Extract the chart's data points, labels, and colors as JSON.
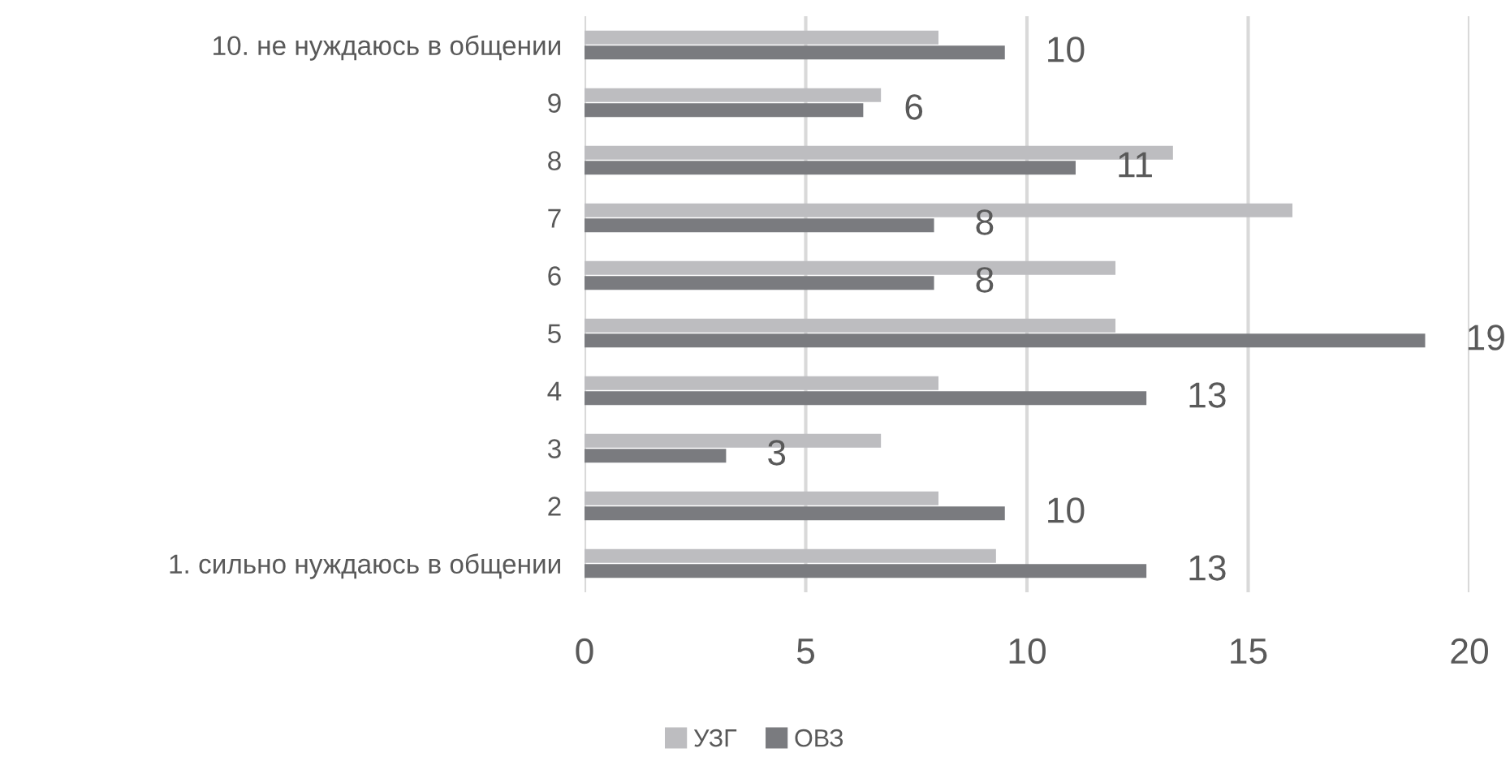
{
  "chart_data": {
    "type": "bar",
    "orientation": "horizontal",
    "categories": [
      "10. не нуждаюсь в общении",
      "9",
      "8",
      "7",
      "6",
      "5",
      "4",
      "3",
      "2",
      "1. сильно нуждаюсь в общении"
    ],
    "series": [
      {
        "name": "УЗГ",
        "color": "#bdbdc0",
        "values": [
          8.0,
          6.7,
          13.3,
          16.0,
          12.0,
          12.0,
          8.0,
          6.7,
          8.0,
          9.3
        ]
      },
      {
        "name": "ОВЗ",
        "color": "#7a7b7f",
        "values": [
          9.5,
          6.3,
          11.1,
          7.9,
          7.9,
          19.0,
          12.7,
          3.2,
          9.5,
          12.7
        ],
        "value_labels": [
          "10",
          "6",
          "11",
          "8",
          "8",
          "19",
          "13",
          "3",
          "10",
          "13"
        ]
      }
    ],
    "xlim": [
      0,
      20
    ],
    "xticks": [
      0,
      5,
      10,
      15,
      20
    ],
    "grid": "x",
    "legend": "bottom"
  }
}
